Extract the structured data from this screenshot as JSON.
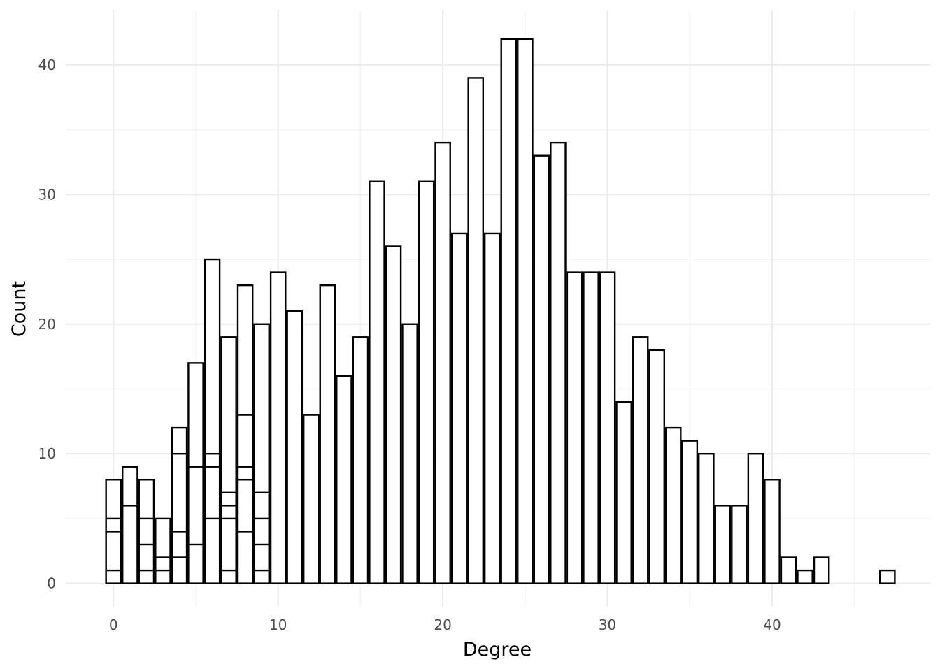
{
  "chart_data": {
    "type": "bar",
    "xlabel": "Degree",
    "ylabel": "Count",
    "xlim": [
      -2.9,
      49.6
    ],
    "ylim": [
      -1.8,
      44.2
    ],
    "x_ticks": [
      0,
      10,
      20,
      30,
      40
    ],
    "y_ticks": [
      0,
      10,
      20,
      30,
      40
    ],
    "grid": true,
    "bar_fill": "#ffffff",
    "bar_outline": "#000000",
    "bars": [
      {
        "x": 0,
        "y": 8
      },
      {
        "x": 0,
        "y": 5
      },
      {
        "x": 0,
        "y": 4
      },
      {
        "x": 0,
        "y": 1
      },
      {
        "x": 1,
        "y": 9
      },
      {
        "x": 1,
        "y": 6
      },
      {
        "x": 2,
        "y": 8
      },
      {
        "x": 2,
        "y": 5
      },
      {
        "x": 2,
        "y": 3
      },
      {
        "x": 2,
        "y": 1
      },
      {
        "x": 3,
        "y": 5
      },
      {
        "x": 3,
        "y": 2
      },
      {
        "x": 3,
        "y": 1
      },
      {
        "x": 4,
        "y": 12
      },
      {
        "x": 4,
        "y": 10
      },
      {
        "x": 4,
        "y": 4
      },
      {
        "x": 4,
        "y": 2
      },
      {
        "x": 5,
        "y": 17
      },
      {
        "x": 5,
        "y": 9
      },
      {
        "x": 5,
        "y": 3
      },
      {
        "x": 6,
        "y": 25
      },
      {
        "x": 6,
        "y": 10
      },
      {
        "x": 6,
        "y": 9
      },
      {
        "x": 6,
        "y": 5
      },
      {
        "x": 7,
        "y": 19
      },
      {
        "x": 7,
        "y": 7
      },
      {
        "x": 7,
        "y": 6
      },
      {
        "x": 7,
        "y": 5
      },
      {
        "x": 7,
        "y": 1
      },
      {
        "x": 8,
        "y": 23
      },
      {
        "x": 8,
        "y": 13
      },
      {
        "x": 8,
        "y": 9
      },
      {
        "x": 8,
        "y": 8
      },
      {
        "x": 8,
        "y": 4
      },
      {
        "x": 9,
        "y": 20
      },
      {
        "x": 9,
        "y": 7
      },
      {
        "x": 9,
        "y": 5
      },
      {
        "x": 9,
        "y": 3
      },
      {
        "x": 9,
        "y": 1
      },
      {
        "x": 10,
        "y": 24
      },
      {
        "x": 11,
        "y": 21
      },
      {
        "x": 12,
        "y": 13
      },
      {
        "x": 13,
        "y": 23
      },
      {
        "x": 14,
        "y": 16
      },
      {
        "x": 15,
        "y": 19
      },
      {
        "x": 16,
        "y": 31
      },
      {
        "x": 17,
        "y": 26
      },
      {
        "x": 18,
        "y": 20
      },
      {
        "x": 19,
        "y": 31
      },
      {
        "x": 20,
        "y": 34
      },
      {
        "x": 21,
        "y": 27
      },
      {
        "x": 22,
        "y": 39
      },
      {
        "x": 23,
        "y": 27
      },
      {
        "x": 24,
        "y": 42
      },
      {
        "x": 25,
        "y": 42
      },
      {
        "x": 26,
        "y": 33
      },
      {
        "x": 27,
        "y": 34
      },
      {
        "x": 28,
        "y": 24
      },
      {
        "x": 29,
        "y": 24
      },
      {
        "x": 30,
        "y": 24
      },
      {
        "x": 31,
        "y": 14
      },
      {
        "x": 32,
        "y": 19
      },
      {
        "x": 33,
        "y": 18
      },
      {
        "x": 34,
        "y": 12
      },
      {
        "x": 35,
        "y": 11
      },
      {
        "x": 36,
        "y": 10
      },
      {
        "x": 37,
        "y": 6
      },
      {
        "x": 38,
        "y": 6
      },
      {
        "x": 39,
        "y": 10
      },
      {
        "x": 40,
        "y": 8
      },
      {
        "x": 41,
        "y": 2
      },
      {
        "x": 42,
        "y": 1
      },
      {
        "x": 43,
        "y": 2
      },
      {
        "x": 47,
        "y": 1
      }
    ]
  }
}
